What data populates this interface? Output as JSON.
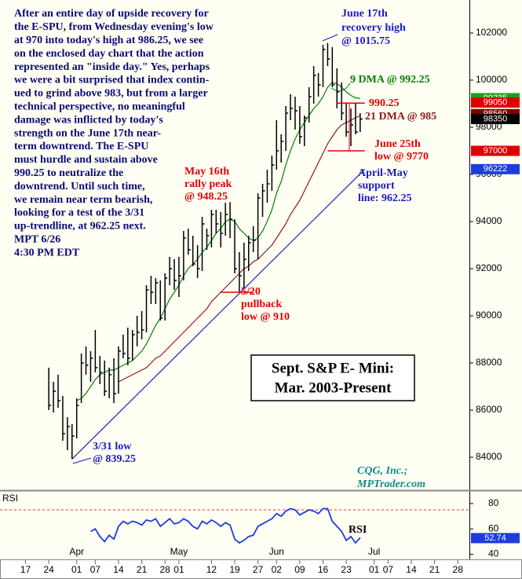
{
  "chart_data": {
    "type": "ohlc",
    "title": [
      "Sept. S&P E- Mini:",
      "Mar. 2003-Present"
    ],
    "commentary": [
      "After an entire day of upside recovery for",
      "the E-SPU, from Wednesday evening's low",
      "at 970 into today's high at 986.25, we see",
      "on the enclosed day chart that the action",
      "represented an \"inside day.\" Yes, perhaps",
      "we were a bit surprised that index contin-",
      "ued to grind above 983, but from a larger",
      "technical perspective, no meaningful",
      "damage was inflicted by today's",
      "strength on the June 17th near-",
      "term downtrend. The E-SPU",
      "must hurdle and sustain above",
      "990.25 to neutralize the",
      "downtrend. Until such time,",
      "we remain near term bearish,",
      "looking for a test of the 3/31",
      "up-trendline, at 962.25 next.",
      "MPT 6/26",
      "4:30 PM EDT"
    ],
    "annotations": {
      "june17": [
        "June 17th",
        "recovery high",
        "@ 1015.75"
      ],
      "ma9": [
        "9 DMA @ 992.25"
      ],
      "level990": [
        "990.25"
      ],
      "ma21": [
        "21 DMA @ 985"
      ],
      "june25": [
        "June 25th",
        "low @ 9770"
      ],
      "support": [
        "April-May",
        "support",
        "line: 962.25"
      ],
      "may16": [
        "May 16th",
        "rally peak",
        "@ 948.25"
      ],
      "may20": [
        "5/20",
        "pullback",
        "low @ 910"
      ],
      "low331": [
        "3/31 low",
        "@ 839.25"
      ],
      "source": [
        "CQG, Inc.;",
        "MPTrader.com"
      ],
      "rsi_name": [
        "RSI"
      ]
    },
    "panel_label": "RSI",
    "xlim": [
      -0.5,
      100.5
    ],
    "ylim": [
      82700,
      103400
    ],
    "yticks": [
      84000,
      86000,
      88000,
      90000,
      92000,
      94000,
      96000,
      98000,
      100000,
      102000
    ],
    "xticks": [
      {
        "value": 5,
        "label": "17"
      },
      {
        "value": 10,
        "label": "24"
      },
      {
        "value": 16,
        "label": "01"
      },
      {
        "value": 20,
        "label": "07"
      },
      {
        "value": 25,
        "label": "14"
      },
      {
        "value": 30,
        "label": "21"
      },
      {
        "value": 35,
        "label": "28"
      },
      {
        "value": 38,
        "label": "01"
      },
      {
        "value": 45,
        "label": "12"
      },
      {
        "value": 50,
        "label": "19"
      },
      {
        "value": 55,
        "label": "27"
      },
      {
        "value": 59,
        "label": "02"
      },
      {
        "value": 64,
        "label": "09"
      },
      {
        "value": 69,
        "label": "16"
      },
      {
        "value": 74,
        "label": "23"
      },
      {
        "value": 80,
        "label": "01"
      },
      {
        "value": 83,
        "label": "07"
      },
      {
        "value": 88,
        "label": "14"
      },
      {
        "value": 93,
        "label": "21"
      },
      {
        "value": 98,
        "label": "28"
      }
    ],
    "months": [
      {
        "value": 16,
        "label": "Apr"
      },
      {
        "value": 38,
        "label": "May"
      },
      {
        "value": 59,
        "label": "Jun"
      },
      {
        "value": 80,
        "label": "Jul"
      }
    ],
    "x": [
      10,
      11,
      12,
      13,
      14,
      15,
      16,
      17,
      18,
      19,
      20,
      21,
      22,
      23,
      24,
      25,
      26,
      27,
      28,
      29,
      30,
      31,
      32,
      33,
      34,
      35,
      36,
      37,
      38,
      39,
      40,
      41,
      42,
      43,
      44,
      45,
      46,
      47,
      48,
      49,
      50,
      51,
      52,
      53,
      54,
      55,
      56,
      57,
      58,
      59,
      60,
      61,
      62,
      63,
      64,
      65,
      66,
      67,
      68,
      69,
      70,
      71,
      72,
      73,
      74,
      75,
      76,
      77
    ],
    "high": [
      87800,
      87200,
      87500,
      86600,
      85700,
      85400,
      86500,
      88400,
      88700,
      88500,
      89400,
      88300,
      88100,
      87800,
      88200,
      88700,
      89200,
      89500,
      89400,
      90000,
      90200,
      91300,
      91700,
      91600,
      91500,
      91800,
      92500,
      92400,
      92500,
      93600,
      93700,
      93400,
      93000,
      94200,
      93700,
      94500,
      94500,
      94400,
      94800,
      94825,
      94100,
      92700,
      93100,
      93400,
      93800,
      95200,
      95600,
      96200,
      96800,
      98300,
      97700,
      98900,
      99400,
      99300,
      98900,
      98500,
      99700,
      100600,
      100300,
      101500,
      101575,
      101400,
      100500,
      99900,
      99000,
      98800,
      99000,
      98600
    ],
    "low": [
      86000,
      85900,
      86100,
      84700,
      84300,
      83925,
      84800,
      86300,
      87500,
      87200,
      87600,
      87100,
      86600,
      86500,
      86300,
      86700,
      88200,
      87900,
      88100,
      88700,
      89000,
      89300,
      90500,
      90500,
      89800,
      89800,
      91300,
      91100,
      90800,
      91500,
      92600,
      92100,
      91600,
      91900,
      92800,
      92900,
      93500,
      92900,
      93400,
      93300,
      91800,
      91000,
      91200,
      91900,
      92700,
      92400,
      94200,
      94800,
      95300,
      96200,
      96500,
      97000,
      98300,
      97900,
      97300,
      97200,
      98200,
      99000,
      99300,
      99700,
      100600,
      99700,
      98800,
      98300,
      97600,
      97200,
      97700,
      97800
    ],
    "close": [
      86200,
      86800,
      86400,
      85000,
      85300,
      84900,
      86200,
      88000,
      87900,
      88200,
      87800,
      87600,
      86800,
      87500,
      86700,
      88500,
      88400,
      88200,
      89200,
      89300,
      89400,
      91100,
      91000,
      91400,
      89900,
      91600,
      92000,
      91500,
      91700,
      93300,
      92800,
      92200,
      92000,
      93900,
      93400,
      94300,
      93900,
      93500,
      94300,
      94100,
      92000,
      91700,
      92400,
      93100,
      93200,
      95000,
      95300,
      95600,
      96400,
      97000,
      97400,
      98600,
      98800,
      98700,
      97600,
      98400,
      99300,
      100200,
      99800,
      101300,
      100900,
      99800,
      99500,
      98600,
      97800,
      98100,
      97800,
      98350
    ],
    "bar_color": "#000000",
    "ma9": {
      "color": "#008000",
      "values": [
        null,
        null,
        null,
        null,
        null,
        null,
        86400,
        86500,
        86700,
        87000,
        87300,
        87500,
        87600,
        87700,
        87700,
        87800,
        87900,
        88000,
        88100,
        88300,
        88500,
        88800,
        89200,
        89600,
        89900,
        90300,
        90700,
        91000,
        91300,
        91700,
        92000,
        92200,
        92400,
        92700,
        92900,
        93200,
        93500,
        93700,
        94000,
        94100,
        94000,
        93700,
        93500,
        93300,
        93200,
        93300,
        93600,
        94000,
        94500,
        95200,
        95700,
        96400,
        97000,
        97500,
        97900,
        98200,
        98500,
        98800,
        99000,
        99300,
        99700,
        99900,
        99850,
        99700,
        99500,
        99350,
        99250,
        99225
      ]
    },
    "ma21": {
      "color": "#8b1a1a",
      "values": [
        null,
        null,
        null,
        null,
        null,
        null,
        null,
        null,
        null,
        null,
        null,
        null,
        null,
        null,
        null,
        87200,
        87300,
        87400,
        87500,
        87600,
        87700,
        87800,
        88000,
        88200,
        88300,
        88500,
        88700,
        88900,
        89100,
        89300,
        89500,
        89700,
        89900,
        90100,
        90300,
        90600,
        90800,
        91000,
        91200,
        91400,
        91600,
        91800,
        92000,
        92100,
        92300,
        92400,
        92600,
        92800,
        93000,
        93300,
        93600,
        93900,
        94300,
        94600,
        94900,
        95300,
        95700,
        96100,
        96500,
        96900,
        97300,
        97600,
        97900,
        98100,
        98200,
        98300,
        98400,
        98500
      ]
    },
    "trendline": {
      "color": "#2020c0",
      "x": [
        15,
        78
      ],
      "values": [
        83925,
        96222
      ]
    },
    "levels": [
      {
        "value": 91000,
        "x": [
          47,
          54
        ]
      },
      {
        "value": 99025,
        "x": [
          72,
          78
        ]
      },
      {
        "value": 97000,
        "x": [
          70,
          78
        ]
      }
    ],
    "level_color": "#e00000",
    "price_boxes": [
      {
        "value": 99235,
        "color": "#1e9e1e"
      },
      {
        "value": 99050,
        "color": "#e00000"
      },
      {
        "value": 98560,
        "color": "#800000"
      },
      {
        "value": 98350,
        "color": "#000000"
      },
      {
        "value": 97000,
        "color": "#e00000"
      },
      {
        "value": 96222,
        "color": "#1c3ce0"
      }
    ],
    "rsi": {
      "color": "#1c3ce0",
      "ylim": [
        36,
        88
      ],
      "yticks": [
        40,
        60,
        80
      ],
      "overbought": 75,
      "overbought_color": "#e03030",
      "last": 52.74,
      "values": [
        null,
        null,
        null,
        null,
        null,
        null,
        null,
        null,
        null,
        58,
        60,
        54,
        50,
        55,
        52,
        62,
        66,
        64,
        66,
        65,
        63,
        67,
        66,
        68,
        62,
        65,
        68,
        64,
        65,
        68,
        66,
        62,
        60,
        66,
        64,
        67,
        65,
        62,
        65,
        63,
        52,
        49,
        51,
        54,
        55,
        62,
        64,
        66,
        68,
        72,
        70,
        74,
        76,
        75,
        71,
        73,
        75,
        74,
        72,
        76,
        76,
        66,
        62,
        58,
        51,
        54,
        49,
        53
      ]
    }
  }
}
